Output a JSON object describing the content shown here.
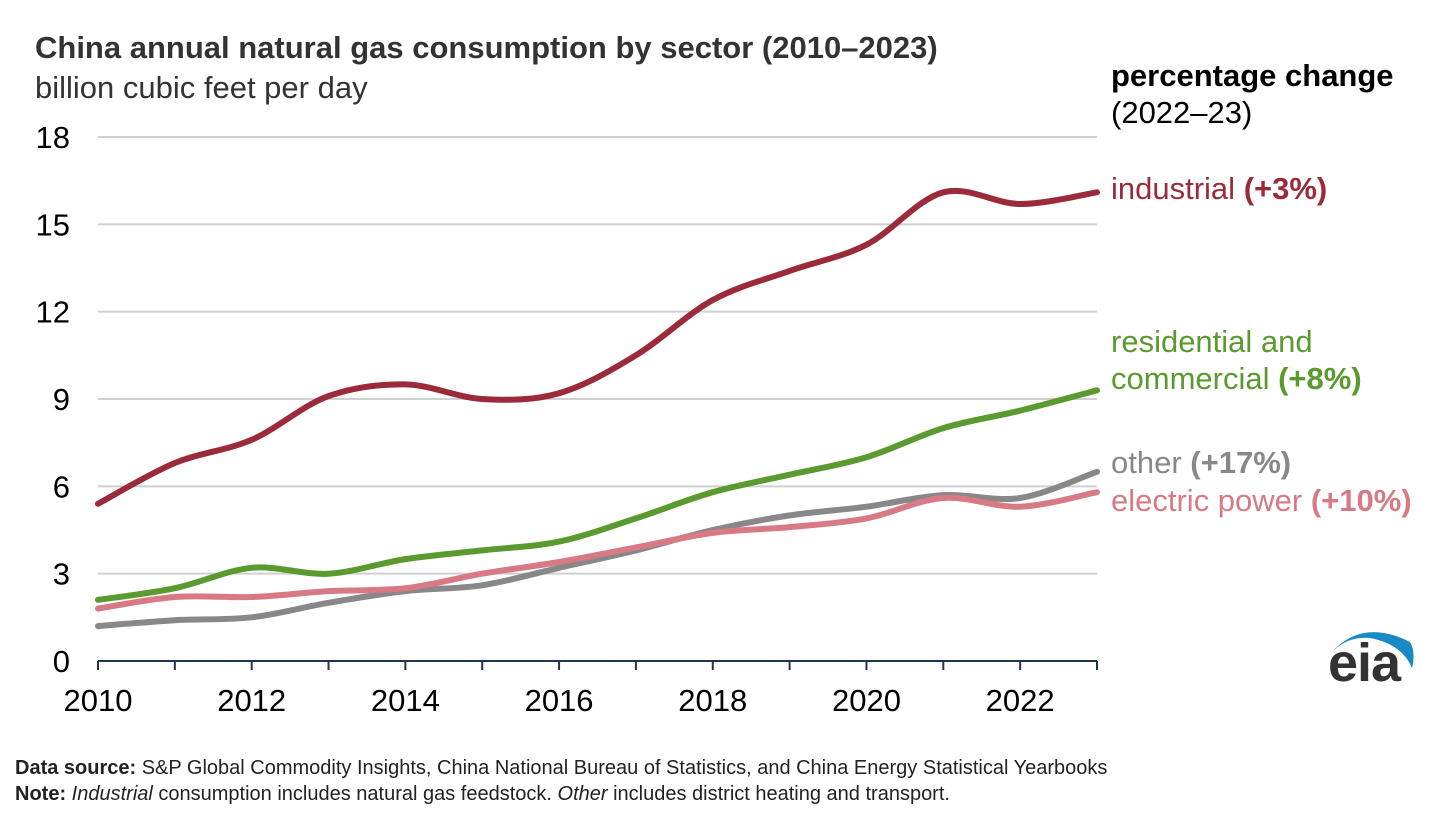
{
  "header": {
    "title": "China annual natural gas consumption by sector (2010–2023)",
    "subtitle": "billion cubic feet per day"
  },
  "legend": {
    "heading": "percentage change",
    "subheading": "(2022–23)"
  },
  "footer": {
    "source_label": "Data source:",
    "source_text": " S&P Global Commodity Insights, China National Bureau of Statistics, and China Energy Statistical Yearbooks",
    "note_label": "Note:",
    "note_italic_1": "Industrial",
    "note_text_1": " consumption includes natural gas feedstock. ",
    "note_italic_2": "Other",
    "note_text_2": " includes district heating and transport."
  },
  "logo": {
    "text": "eia",
    "icon": "eia-swoosh-logo",
    "color": "#1a8ac6"
  },
  "chart_data": {
    "type": "line",
    "title": "China annual natural gas consumption by sector (2010–2023)",
    "ylabel": "billion cubic feet per day",
    "x": [
      2010,
      2011,
      2012,
      2013,
      2014,
      2015,
      2016,
      2017,
      2018,
      2019,
      2020,
      2021,
      2022,
      2023
    ],
    "xlim": [
      2010,
      2023
    ],
    "ylim": [
      0,
      18
    ],
    "xticks": [
      2010,
      2012,
      2014,
      2016,
      2018,
      2020,
      2022
    ],
    "yticks": [
      0,
      3,
      6,
      9,
      12,
      15,
      18
    ],
    "grid": true,
    "legend_placement": "right, direct labels",
    "series": [
      {
        "name": "industrial",
        "change": "(+3%)",
        "color": "#9b2b3a",
        "values": [
          5.4,
          6.8,
          7.6,
          9.1,
          9.5,
          9.0,
          9.2,
          10.5,
          12.4,
          13.4,
          14.3,
          16.1,
          15.7,
          16.1
        ]
      },
      {
        "name": "residential and commercial",
        "name_line1": "residential and",
        "name_line2": "commercial",
        "change": "(+8%)",
        "color": "#5a9a2e",
        "values": [
          2.1,
          2.5,
          3.2,
          3.0,
          3.5,
          3.8,
          4.1,
          4.9,
          5.8,
          6.4,
          7.0,
          8.0,
          8.6,
          9.3
        ]
      },
      {
        "name": "other",
        "change": "(+17%)",
        "color": "#888888",
        "values": [
          1.2,
          1.4,
          1.5,
          2.0,
          2.4,
          2.6,
          3.2,
          3.8,
          4.5,
          5.0,
          5.3,
          5.7,
          5.6,
          6.5
        ]
      },
      {
        "name": "electric power",
        "change": "(+10%)",
        "color": "#d87a86",
        "values": [
          1.8,
          2.2,
          2.2,
          2.4,
          2.5,
          3.0,
          3.4,
          3.9,
          4.4,
          4.6,
          4.9,
          5.6,
          5.3,
          5.8
        ]
      }
    ]
  }
}
